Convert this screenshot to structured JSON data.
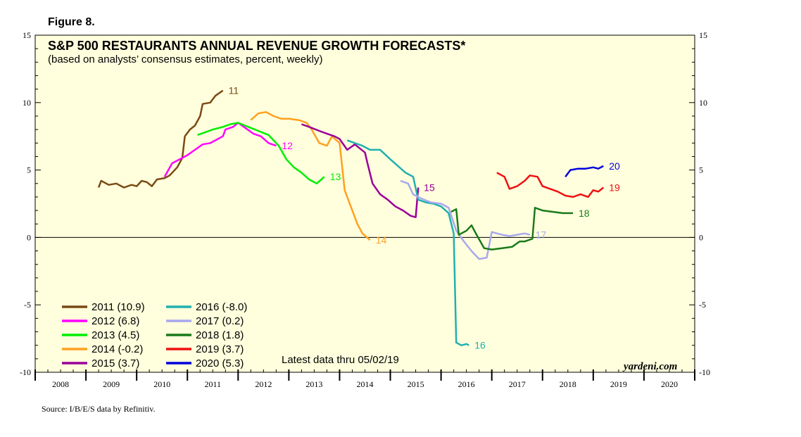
{
  "figure_label": "Figure 8.",
  "source": "Source: I/B/E/S data by Refinitiv.",
  "chart_data": {
    "type": "line",
    "title": "S&P 500 RESTAURANTS ANNUAL REVENUE GROWTH FORECASTS*",
    "subtitle": "(based on analysts’ consensus estimates, percent, weekly)",
    "xlabel": "",
    "ylabel": "",
    "xlim": [
      2008,
      2021
    ],
    "ylim": [
      -10,
      15
    ],
    "y_ticks": [
      -10,
      -5,
      0,
      5,
      10,
      15
    ],
    "x_tick_labels": [
      "2008",
      "2009",
      "2010",
      "2011",
      "2012",
      "2013",
      "2014",
      "2015",
      "2016",
      "2017",
      "2018",
      "2019",
      "2020"
    ],
    "annotation": "Latest data thru 05/02/19",
    "watermark": "yardeni.com",
    "series": [
      {
        "name": "2011 (10.9)",
        "end_label": "11",
        "color": "#7a4a14",
        "points": [
          [
            2009.25,
            3.7
          ],
          [
            2009.3,
            4.2
          ],
          [
            2009.45,
            3.9
          ],
          [
            2009.6,
            4.0
          ],
          [
            2009.75,
            3.7
          ],
          [
            2009.9,
            3.9
          ],
          [
            2010.0,
            3.8
          ],
          [
            2010.1,
            4.2
          ],
          [
            2010.2,
            4.1
          ],
          [
            2010.3,
            3.8
          ],
          [
            2010.4,
            4.3
          ],
          [
            2010.55,
            4.4
          ],
          [
            2010.65,
            4.6
          ],
          [
            2010.8,
            5.2
          ],
          [
            2010.9,
            5.9
          ],
          [
            2010.95,
            7.5
          ],
          [
            2011.05,
            8.0
          ],
          [
            2011.15,
            8.3
          ],
          [
            2011.25,
            9.0
          ],
          [
            2011.3,
            9.9
          ],
          [
            2011.45,
            10.0
          ],
          [
            2011.55,
            10.5
          ],
          [
            2011.7,
            10.9
          ]
        ]
      },
      {
        "name": "2012 (6.8)",
        "end_label": "12",
        "color": "#ff00ff",
        "points": [
          [
            2010.55,
            4.5
          ],
          [
            2010.7,
            5.5
          ],
          [
            2010.85,
            5.8
          ],
          [
            2011.0,
            6.1
          ],
          [
            2011.15,
            6.5
          ],
          [
            2011.3,
            6.9
          ],
          [
            2011.45,
            7.0
          ],
          [
            2011.6,
            7.3
          ],
          [
            2011.7,
            7.5
          ],
          [
            2011.75,
            8.0
          ],
          [
            2011.9,
            8.2
          ],
          [
            2012.0,
            8.5
          ],
          [
            2012.15,
            8.1
          ],
          [
            2012.3,
            7.7
          ],
          [
            2012.45,
            7.5
          ],
          [
            2012.6,
            7.0
          ],
          [
            2012.75,
            6.8
          ]
        ]
      },
      {
        "name": "2013 (4.5)",
        "end_label": "13",
        "color": "#00ee00",
        "points": [
          [
            2011.2,
            7.6
          ],
          [
            2011.35,
            7.8
          ],
          [
            2011.5,
            8.0
          ],
          [
            2011.7,
            8.2
          ],
          [
            2011.85,
            8.4
          ],
          [
            2012.0,
            8.5
          ],
          [
            2012.2,
            8.2
          ],
          [
            2012.4,
            7.9
          ],
          [
            2012.6,
            7.6
          ],
          [
            2012.8,
            6.8
          ],
          [
            2012.95,
            5.8
          ],
          [
            2013.1,
            5.2
          ],
          [
            2013.25,
            4.8
          ],
          [
            2013.4,
            4.3
          ],
          [
            2013.55,
            4.0
          ],
          [
            2013.7,
            4.5
          ]
        ]
      },
      {
        "name": "2014 (-0.2)",
        "end_label": "14",
        "color": "#ffa020",
        "points": [
          [
            2012.25,
            8.7
          ],
          [
            2012.4,
            9.2
          ],
          [
            2012.55,
            9.3
          ],
          [
            2012.7,
            9.0
          ],
          [
            2012.85,
            8.8
          ],
          [
            2013.0,
            8.8
          ],
          [
            2013.2,
            8.7
          ],
          [
            2013.35,
            8.5
          ],
          [
            2013.45,
            8.0
          ],
          [
            2013.6,
            7.0
          ],
          [
            2013.75,
            6.8
          ],
          [
            2013.85,
            7.5
          ],
          [
            2014.0,
            7.0
          ],
          [
            2014.1,
            3.5
          ],
          [
            2014.25,
            2.0
          ],
          [
            2014.35,
            1.0
          ],
          [
            2014.45,
            0.3
          ],
          [
            2014.6,
            -0.2
          ]
        ]
      },
      {
        "name": "2015 (3.7)",
        "end_label": "15",
        "color": "#990099",
        "points": [
          [
            2013.25,
            8.4
          ],
          [
            2013.4,
            8.2
          ],
          [
            2013.6,
            7.9
          ],
          [
            2013.75,
            7.7
          ],
          [
            2013.9,
            7.5
          ],
          [
            2014.0,
            7.3
          ],
          [
            2014.15,
            6.5
          ],
          [
            2014.3,
            6.9
          ],
          [
            2014.5,
            6.3
          ],
          [
            2014.55,
            5.5
          ],
          [
            2014.65,
            4.0
          ],
          [
            2014.8,
            3.2
          ],
          [
            2014.95,
            2.8
          ],
          [
            2015.1,
            2.3
          ],
          [
            2015.25,
            2.0
          ],
          [
            2015.4,
            1.6
          ],
          [
            2015.5,
            1.5
          ],
          [
            2015.55,
            3.7
          ]
        ]
      },
      {
        "name": "2016 (-8.0)",
        "end_label": "16",
        "color": "#20b0b0",
        "points": [
          [
            2014.15,
            7.2
          ],
          [
            2014.3,
            7.0
          ],
          [
            2014.45,
            6.8
          ],
          [
            2014.6,
            6.5
          ],
          [
            2014.8,
            6.5
          ],
          [
            2015.0,
            5.8
          ],
          [
            2015.15,
            5.3
          ],
          [
            2015.3,
            4.8
          ],
          [
            2015.45,
            4.5
          ],
          [
            2015.55,
            2.8
          ],
          [
            2015.7,
            2.6
          ],
          [
            2015.85,
            2.5
          ],
          [
            2016.0,
            2.3
          ],
          [
            2016.15,
            1.8
          ],
          [
            2016.25,
            0.3
          ],
          [
            2016.3,
            -7.8
          ],
          [
            2016.4,
            -8.0
          ],
          [
            2016.5,
            -7.9
          ],
          [
            2016.55,
            -8.0
          ]
        ]
      },
      {
        "name": "2017 (0.2)",
        "end_label": "17",
        "color": "#a8a8ee",
        "points": [
          [
            2015.2,
            4.2
          ],
          [
            2015.35,
            4.0
          ],
          [
            2015.45,
            3.2
          ],
          [
            2015.6,
            2.9
          ],
          [
            2015.8,
            2.6
          ],
          [
            2016.0,
            2.5
          ],
          [
            2016.15,
            2.2
          ],
          [
            2016.3,
            0.5
          ],
          [
            2016.45,
            -0.3
          ],
          [
            2016.6,
            -1.0
          ],
          [
            2016.75,
            -1.6
          ],
          [
            2016.9,
            -1.5
          ],
          [
            2017.0,
            0.4
          ],
          [
            2017.2,
            0.2
          ],
          [
            2017.35,
            0.1
          ],
          [
            2017.5,
            0.2
          ],
          [
            2017.65,
            0.3
          ],
          [
            2017.75,
            0.2
          ]
        ]
      },
      {
        "name": "2018 (1.8)",
        "end_label": "18",
        "color": "#1a7a1a",
        "points": [
          [
            2016.2,
            1.9
          ],
          [
            2016.3,
            2.1
          ],
          [
            2016.35,
            0.2
          ],
          [
            2016.5,
            0.5
          ],
          [
            2016.6,
            0.9
          ],
          [
            2016.7,
            0.2
          ],
          [
            2016.85,
            -0.8
          ],
          [
            2017.0,
            -0.9
          ],
          [
            2017.2,
            -0.8
          ],
          [
            2017.4,
            -0.7
          ],
          [
            2017.55,
            -0.3
          ],
          [
            2017.65,
            -0.3
          ],
          [
            2017.8,
            -0.1
          ],
          [
            2017.85,
            2.2
          ],
          [
            2018.0,
            2.0
          ],
          [
            2018.2,
            1.9
          ],
          [
            2018.4,
            1.8
          ],
          [
            2018.6,
            1.8
          ]
        ]
      },
      {
        "name": "2019 (3.7)",
        "end_label": "19",
        "color": "#ee1111",
        "points": [
          [
            2017.1,
            4.8
          ],
          [
            2017.25,
            4.5
          ],
          [
            2017.35,
            3.6
          ],
          [
            2017.5,
            3.8
          ],
          [
            2017.65,
            4.2
          ],
          [
            2017.75,
            4.6
          ],
          [
            2017.9,
            4.5
          ],
          [
            2018.0,
            3.8
          ],
          [
            2018.15,
            3.6
          ],
          [
            2018.3,
            3.4
          ],
          [
            2018.45,
            3.1
          ],
          [
            2018.6,
            3.0
          ],
          [
            2018.75,
            3.2
          ],
          [
            2018.9,
            3.0
          ],
          [
            2019.0,
            3.5
          ],
          [
            2019.1,
            3.4
          ],
          [
            2019.2,
            3.7
          ]
        ]
      },
      {
        "name": "2020 (5.3)",
        "end_label": "20",
        "color": "#0000dd",
        "points": [
          [
            2018.45,
            4.5
          ],
          [
            2018.55,
            5.0
          ],
          [
            2018.7,
            5.1
          ],
          [
            2018.85,
            5.1
          ],
          [
            2019.0,
            5.2
          ],
          [
            2019.1,
            5.1
          ],
          [
            2019.2,
            5.3
          ]
        ]
      }
    ]
  }
}
